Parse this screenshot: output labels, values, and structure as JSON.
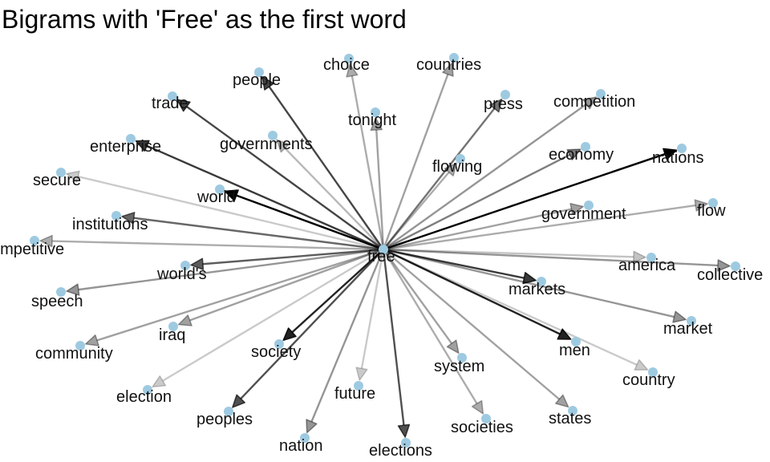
{
  "title": "Bigrams with 'Free' as the first word",
  "style": {
    "node_color": "#9ecae1",
    "edge_color": "#000000"
  },
  "graph": {
    "center": {
      "label": "free",
      "weight": 1.0
    },
    "targets": [
      {
        "label": "choice",
        "weight": 0.25
      },
      {
        "label": "countries",
        "weight": 0.3
      },
      {
        "label": "people",
        "weight": 0.7
      },
      {
        "label": "trade",
        "weight": 0.7
      },
      {
        "label": "tonight",
        "weight": 0.3
      },
      {
        "label": "press",
        "weight": 0.5
      },
      {
        "label": "competition",
        "weight": 0.35
      },
      {
        "label": "governments",
        "weight": 0.2
      },
      {
        "label": "enterprise",
        "weight": 0.75
      },
      {
        "label": "flowing",
        "weight": 0.25
      },
      {
        "label": "economy",
        "weight": 0.45
      },
      {
        "label": "nations",
        "weight": 1.0
      },
      {
        "label": "secure",
        "weight": 0.12
      },
      {
        "label": "world",
        "weight": 1.0
      },
      {
        "label": "government",
        "weight": 0.3
      },
      {
        "label": "flow",
        "weight": 0.25
      },
      {
        "label": "institutions",
        "weight": 0.55
      },
      {
        "label": "competitive",
        "weight": 0.25
      },
      {
        "label": "free",
        "weight": 0.0
      },
      {
        "label": "america",
        "weight": 0.15
      },
      {
        "label": "collective",
        "weight": 0.35
      },
      {
        "label": "world's",
        "weight": 0.6
      },
      {
        "label": "markets",
        "weight": 0.75
      },
      {
        "label": "speech",
        "weight": 0.35
      },
      {
        "label": "market",
        "weight": 0.35
      },
      {
        "label": "iraq",
        "weight": 0.3
      },
      {
        "label": "men",
        "weight": 0.85
      },
      {
        "label": "community",
        "weight": 0.3
      },
      {
        "label": "society",
        "weight": 0.85
      },
      {
        "label": "system",
        "weight": 0.3
      },
      {
        "label": "country",
        "weight": 0.12
      },
      {
        "label": "election",
        "weight": 0.12
      },
      {
        "label": "future",
        "weight": 0.12
      },
      {
        "label": "peoples",
        "weight": 0.65
      },
      {
        "label": "states",
        "weight": 0.3
      },
      {
        "label": "societies",
        "weight": 0.25
      },
      {
        "label": "nation",
        "weight": 0.35
      },
      {
        "label": "elections",
        "weight": 0.65
      }
    ]
  }
}
